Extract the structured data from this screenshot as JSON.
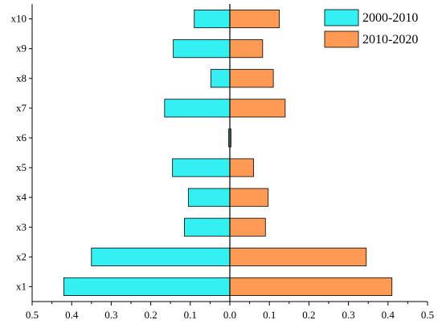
{
  "chart_data": {
    "type": "bar",
    "orientation": "horizontal-diverging",
    "categories": [
      "x1",
      "x2",
      "x3",
      "x4",
      "x5",
      "x6",
      "x7",
      "x8",
      "x9",
      "x10"
    ],
    "series": [
      {
        "name": "2000-2010",
        "color": "#33f0f2",
        "direction": "left",
        "values": [
          0.42,
          0.35,
          0.115,
          0.105,
          0.145,
          0.003,
          0.165,
          0.048,
          0.143,
          0.09
        ]
      },
      {
        "name": "2010-2020",
        "color": "#ff9a55",
        "direction": "right",
        "values": [
          0.41,
          0.345,
          0.09,
          0.097,
          0.06,
          0.003,
          0.14,
          0.11,
          0.083,
          0.125
        ]
      }
    ],
    "x_ticks": [
      "0.5",
      "0.4",
      "0.3",
      "0.2",
      "0.1",
      "0.0",
      "0.1",
      "0.2",
      "0.3",
      "0.4",
      "0.5"
    ],
    "xlim": [
      -0.5,
      0.5
    ],
    "grid": false,
    "legend_position": "top-right",
    "title": "",
    "xlabel": "",
    "ylabel": ""
  }
}
